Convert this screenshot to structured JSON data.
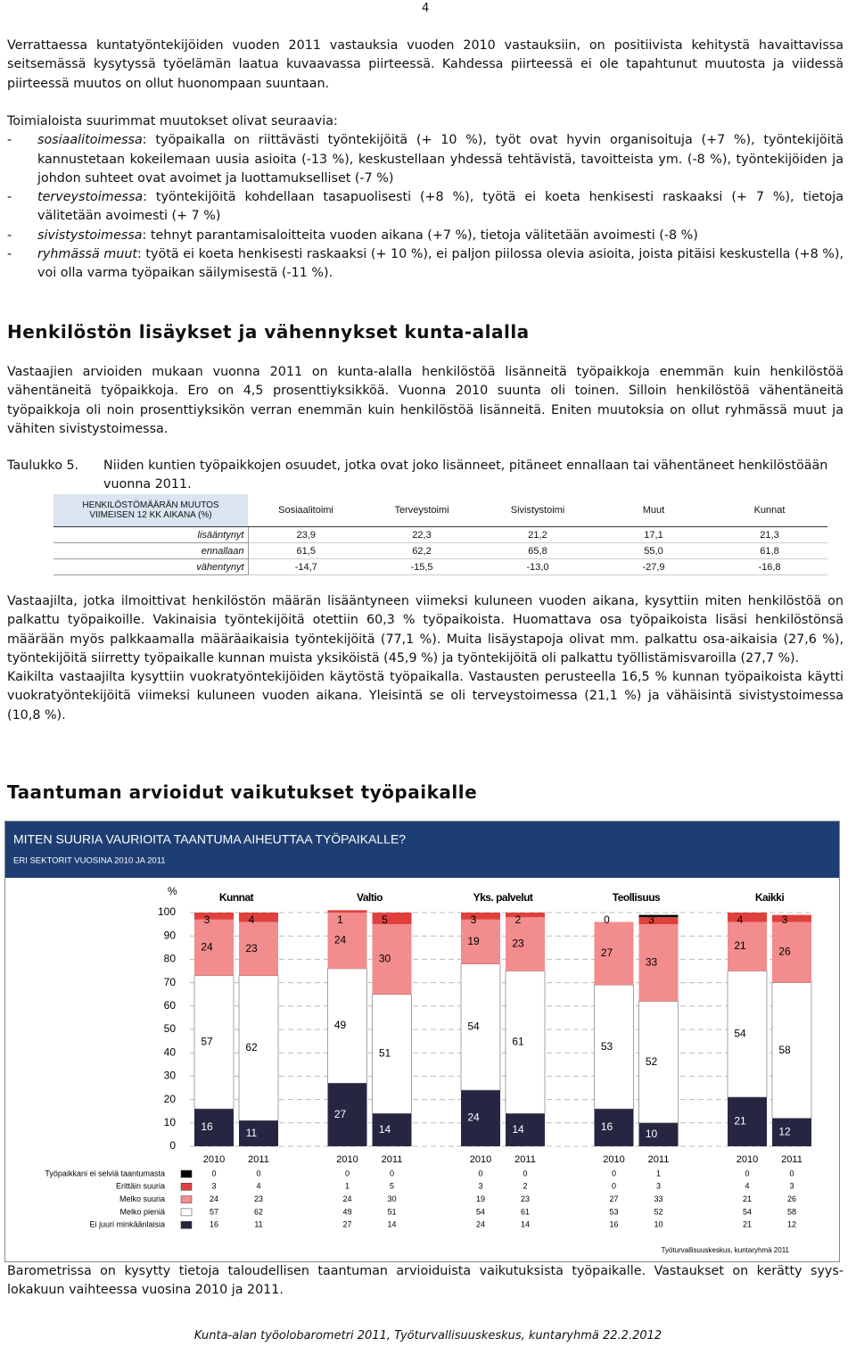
{
  "page_number": "4",
  "paragraphs": [
    "Verrattaessa kuntatyöntekijöiden vuoden 2011 vastauksia vuoden 2010 vastauksiin, on positiivista kehitystä havaittavissa seitsemässä kysytyssä työelämän laatua kuvaavassa piirteessä. Kahdessa piirteessä ei ole tapahtunut muutosta ja viidessä piirteessä muutos on ollut huonompaan suuntaan.",
    "Toimialoista suurimmat muutokset olivat seuraavia:",
    "Vastaajien arvioiden mukaan vuonna 2011 on kunta-alalla henkilöstöä lisänneitä työpaikkoja enemmän kuin henkilöstöä vähentäneitä työpaikkoja. Ero on 4,5 prosenttiyksikköä. Vuonna 2010 suunta oli toinen. Silloin henkilöstöä vähentäneitä työpaikkoja oli noin prosenttiyksikön verran enemmän kuin henkilöstöä lisänneitä. Eniten muutoksia on ollut ryhmässä muut ja vähiten sivistystoimessa.",
    "Vastaajilta, jotka ilmoittivat henkilöstön määrän lisääntyneen viimeksi kuluneen vuoden aikana, kysyttiin miten henkilöstöä on palkattu työpaikoille. Vakinaisia työntekijöitä otettiin 60,3 % työpaikoista. Huomattava osa työpaikoista lisäsi henkilöstönsä määrään myös palkkaamalla määräaikaisia työntekijöitä (77,1 %). Muita lisäystapoja olivat mm. palkattu osa-aikaisia (27,6 %), työntekijöitä siirretty työpaikalle kunnan muista yksiköistä (45,9 %) ja työntekijöitä oli palkattu työllistämisvaroilla (27,7 %).",
    "Kaikilta vastaajilta kysyttiin vuokratyöntekijöiden käytöstä työpaikalla. Vastausten perusteella 16,5 % kunnan työpaikoista käytti vuokratyöntekijöitä viimeksi kuluneen vuoden aikana. Yleisintä se oli terveystoimessa (21,1 %) ja vähäisintä sivistystoimessa (10,8 %).",
    "Barometrissa on kysytty tietoja taloudellisen taantuman arvioiduista vaikutuksista työpaikalle. Vastaukset on kerätty syys- lokakuun vaihteessa vuosina 2010 ja 2011."
  ],
  "list": [
    {
      "term": "sosiaalitoimessa",
      "text": ": työpaikalla on riittävästi työntekijöitä (+ 10 %), työt ovat hyvin organisoituja (+7 %), työntekijöitä kannustetaan kokeilemaan uusia asioita (-13 %), keskustellaan yhdessä tehtävistä, tavoitteista ym. (-8 %), työntekijöiden ja johdon suhteet ovat avoimet ja luottamukselliset (-7 %)"
    },
    {
      "term": "terveystoimessa",
      "text": ": työntekijöitä kohdellaan tasapuolisesti (+8 %), työtä ei koeta henkisesti raskaaksi (+ 7 %), tietoja välitetään avoimesti (+ 7 %)"
    },
    {
      "term": "sivistystoimessa",
      "text": ": tehnyt parantamisaloitteita vuoden aikana (+7 %), tietoja välitetään avoimesti (-8 %)"
    },
    {
      "term": "ryhmässä muut",
      "text": ": työtä ei koeta henkisesti raskaaksi (+ 10 %), ei paljon piilossa olevia asioita, joista pitäisi keskustella (+8 %), voi olla varma työpaikan säilymisestä (-11 %)."
    }
  ],
  "headings": [
    "Henkilöstön lisäykset ja vähennykset kunta-alalla",
    "Taantuman arvioidut vaikutukset työpaikalle"
  ],
  "table_caption": {
    "label": "Taulukko 5.",
    "text": "Niiden kuntien työpaikkojen osuudet, jotka ovat joko lisänneet, pitäneet ennallaan tai vähentäneet henkilöstöään vuonna 2011."
  },
  "table": {
    "corner": [
      "HENKILÖSTÖMÄÄRÄN MUUTOS",
      "VIIMEISEN 12 KK AIKANA (%)"
    ],
    "columns": [
      "Sosiaalitoimi",
      "Terveystoimi",
      "Sivistystoimi",
      "Muut",
      "Kunnat"
    ],
    "rows": [
      {
        "label": "lisääntynyt",
        "cells": [
          "23,9",
          "22,3",
          "21,2",
          "17,1",
          "21,3"
        ]
      },
      {
        "label": "ennallaan",
        "cells": [
          "61,5",
          "62,2",
          "65,8",
          "55,0",
          "61,8"
        ]
      },
      {
        "label": "vähentynyt",
        "cells": [
          "-14,7",
          "-15,5",
          "-13,0",
          "-27,9",
          "-16,8"
        ]
      }
    ]
  },
  "chart_data": {
    "type": "stacked_bar",
    "title": "MITEN SUURIA VAURIOITA TAANTUMA AIHEUTTAA TYÖPAIKALLE?",
    "subtitle": "ERI SEKTORIT VUOSINA 2010 JA 2011",
    "y_label": "%",
    "groups": [
      "Kunnat",
      "Valtio",
      "Yks. palvelut",
      "Teollisuus",
      "Kaikki"
    ],
    "categories": [
      "2010",
      "2011",
      "2010",
      "2011",
      "2010",
      "2011",
      "2010",
      "2011",
      "2010",
      "2011"
    ],
    "series": [
      {
        "name": "Ei juuri minkäänlaisia",
        "color": "#262643",
        "values": [
          16,
          11,
          27,
          14,
          24,
          14,
          16,
          10,
          21,
          12
        ]
      },
      {
        "name": "Melko pieniä",
        "color": "#ffffff",
        "values": [
          57,
          62,
          49,
          51,
          54,
          61,
          53,
          52,
          54,
          58
        ]
      },
      {
        "name": "Melko suuria",
        "color": "#f28c8d",
        "values": [
          24,
          23,
          24,
          30,
          19,
          23,
          27,
          33,
          21,
          26
        ]
      },
      {
        "name": "Erittäin suuria",
        "color": "#e0403c",
        "values": [
          3,
          4,
          1,
          5,
          3,
          2,
          0,
          3,
          4,
          3
        ]
      },
      {
        "name": "Työpaikkani ei selviä taantumasta",
        "color": "#000000",
        "values": [
          0,
          0,
          0,
          0,
          0,
          0,
          0,
          1,
          0,
          0
        ]
      }
    ],
    "ylim": [
      0,
      100
    ],
    "yticks": [
      0,
      10,
      20,
      30,
      40,
      50,
      60,
      70,
      80,
      90,
      100
    ],
    "grid": true,
    "source": "Työturvallisuuskeskus, kuntaryhmä 2011"
  },
  "footer": "Kunta-alan työolobarometri 2011, Työturvallisuuskeskus, kuntaryhmä 22.2.2012"
}
